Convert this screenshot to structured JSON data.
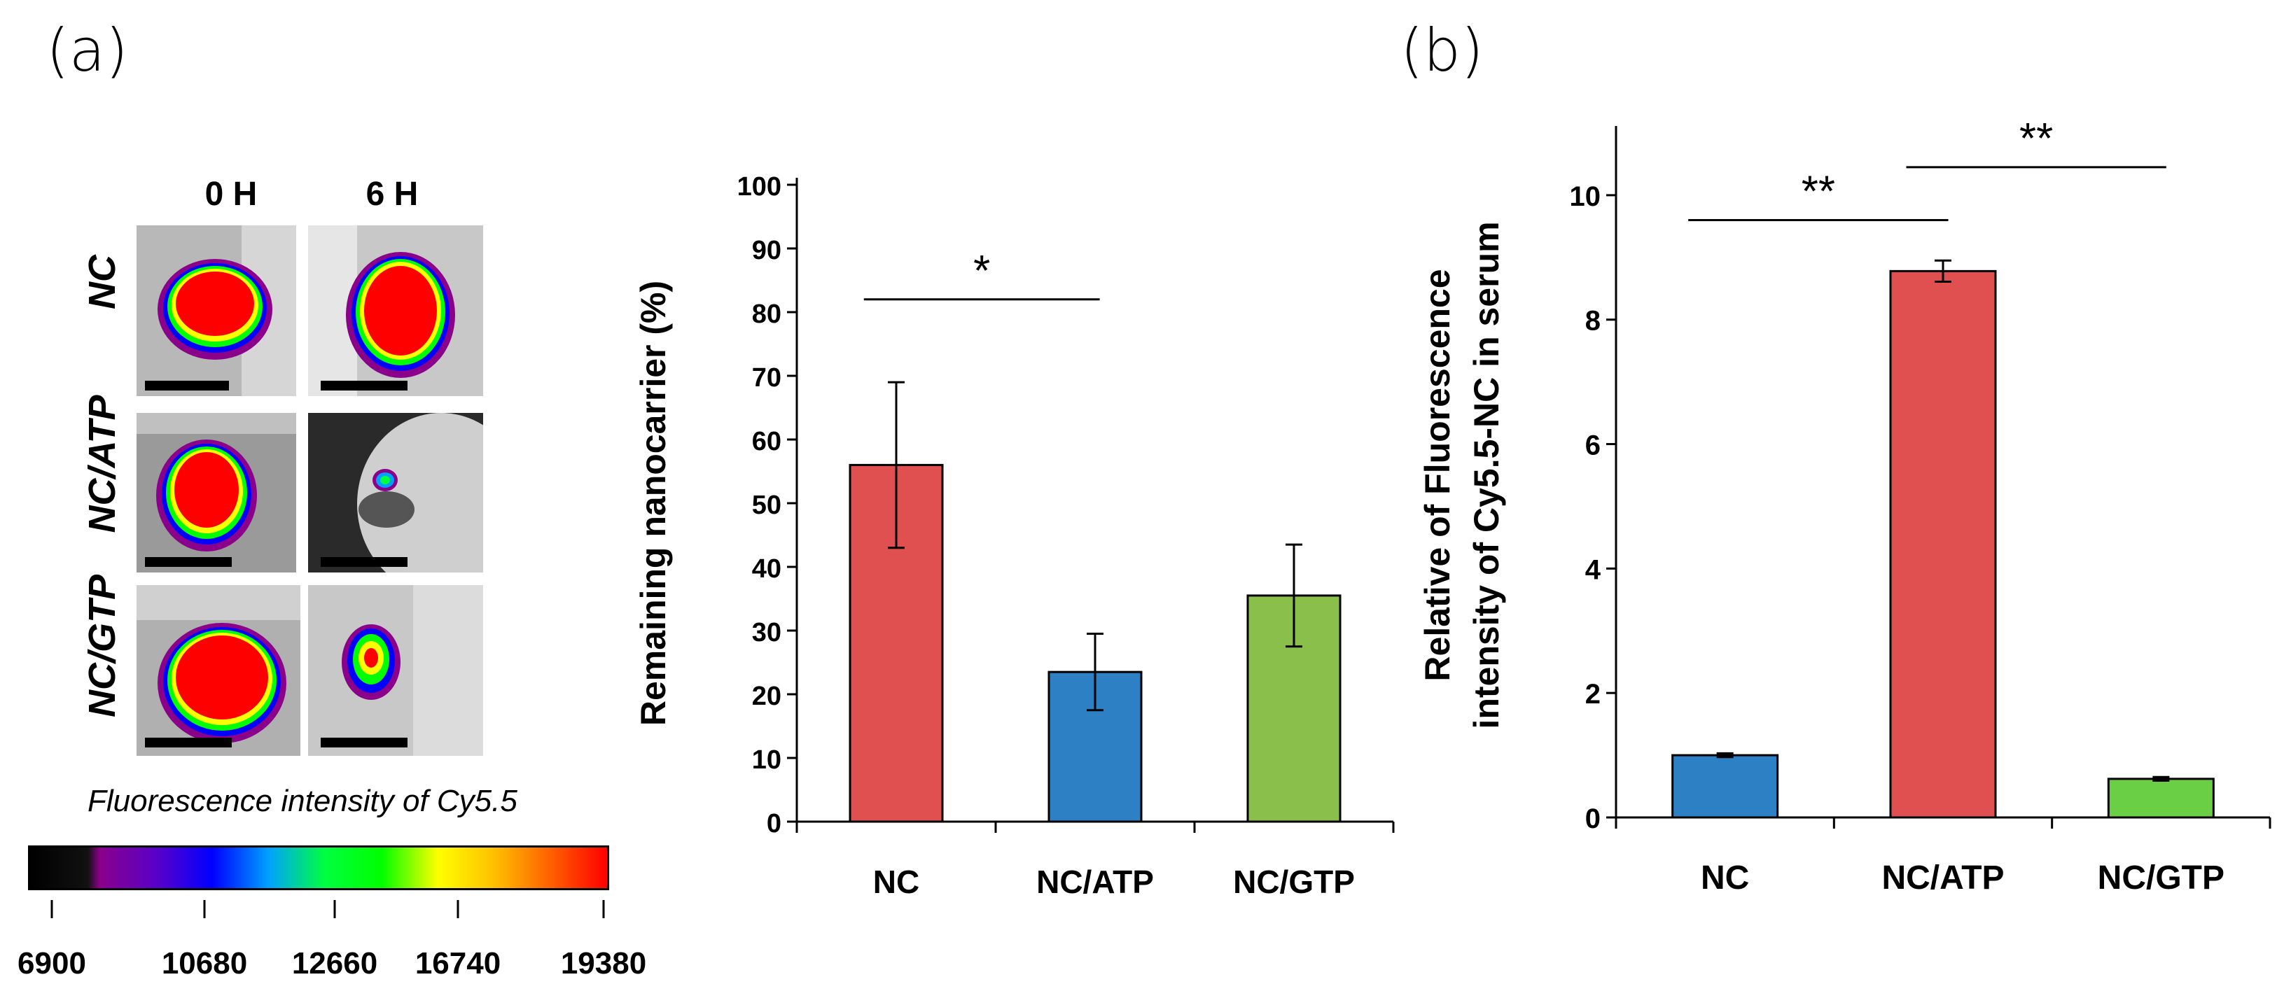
{
  "panels": {
    "a": "(a)",
    "b": "(b)"
  },
  "imaging": {
    "columns": [
      "0 H",
      "6 H"
    ],
    "rows": [
      "NC",
      "NC/ATP",
      "NC/GTP"
    ]
  },
  "colorbar": {
    "title": "Fluorescence intensity of Cy5.5",
    "ticks": [
      "6900",
      "10680",
      "12660",
      "16740",
      "19380"
    ],
    "colors": [
      "#000000",
      "#111111",
      "#8a008a",
      "#5a00c8",
      "#0000ff",
      "#00a0ff",
      "#00ff40",
      "#00ff00",
      "#ffff00",
      "#ffc000",
      "#ff6000",
      "#ff0000"
    ]
  },
  "chart_data": [
    {
      "type": "bar",
      "categories": [
        "NC",
        "NC/ATP",
        "NC/GTP"
      ],
      "values": [
        56,
        23.5,
        35.5
      ],
      "errors": [
        13,
        6,
        8
      ],
      "colors": [
        "#e05050",
        "#2e80c4",
        "#8bbf4c"
      ],
      "ylabel": "Remaining nanocarrier (%)",
      "ylim": [
        0,
        100
      ],
      "yticks": [
        "0",
        "10",
        "20",
        "30",
        "40",
        "50",
        "60",
        "70",
        "80",
        "90",
        "100"
      ],
      "significance": [
        {
          "from": 0,
          "to": 1,
          "label": "*",
          "y": 82
        }
      ]
    },
    {
      "type": "bar",
      "categories": [
        "NC",
        "NC/ATP",
        "NC/GTP"
      ],
      "values": [
        1.0,
        8.78,
        0.62
      ],
      "errors": [
        0.03,
        0.17,
        0.03
      ],
      "colors": [
        "#2e80c4",
        "#e05050",
        "#6bcf45"
      ],
      "ylabel_lines": [
        "Relative of Fluorescence",
        "intensity of Cy5.5-NC in serum"
      ],
      "ylim": [
        0,
        11
      ],
      "yticks": [
        "0",
        "2",
        "4",
        "6",
        "8",
        "10"
      ],
      "significance": [
        {
          "from": 0,
          "to": 1,
          "label": "**",
          "y": 9.6
        },
        {
          "from": 1,
          "to": 2,
          "label": "**",
          "y": 10.45
        }
      ]
    }
  ]
}
